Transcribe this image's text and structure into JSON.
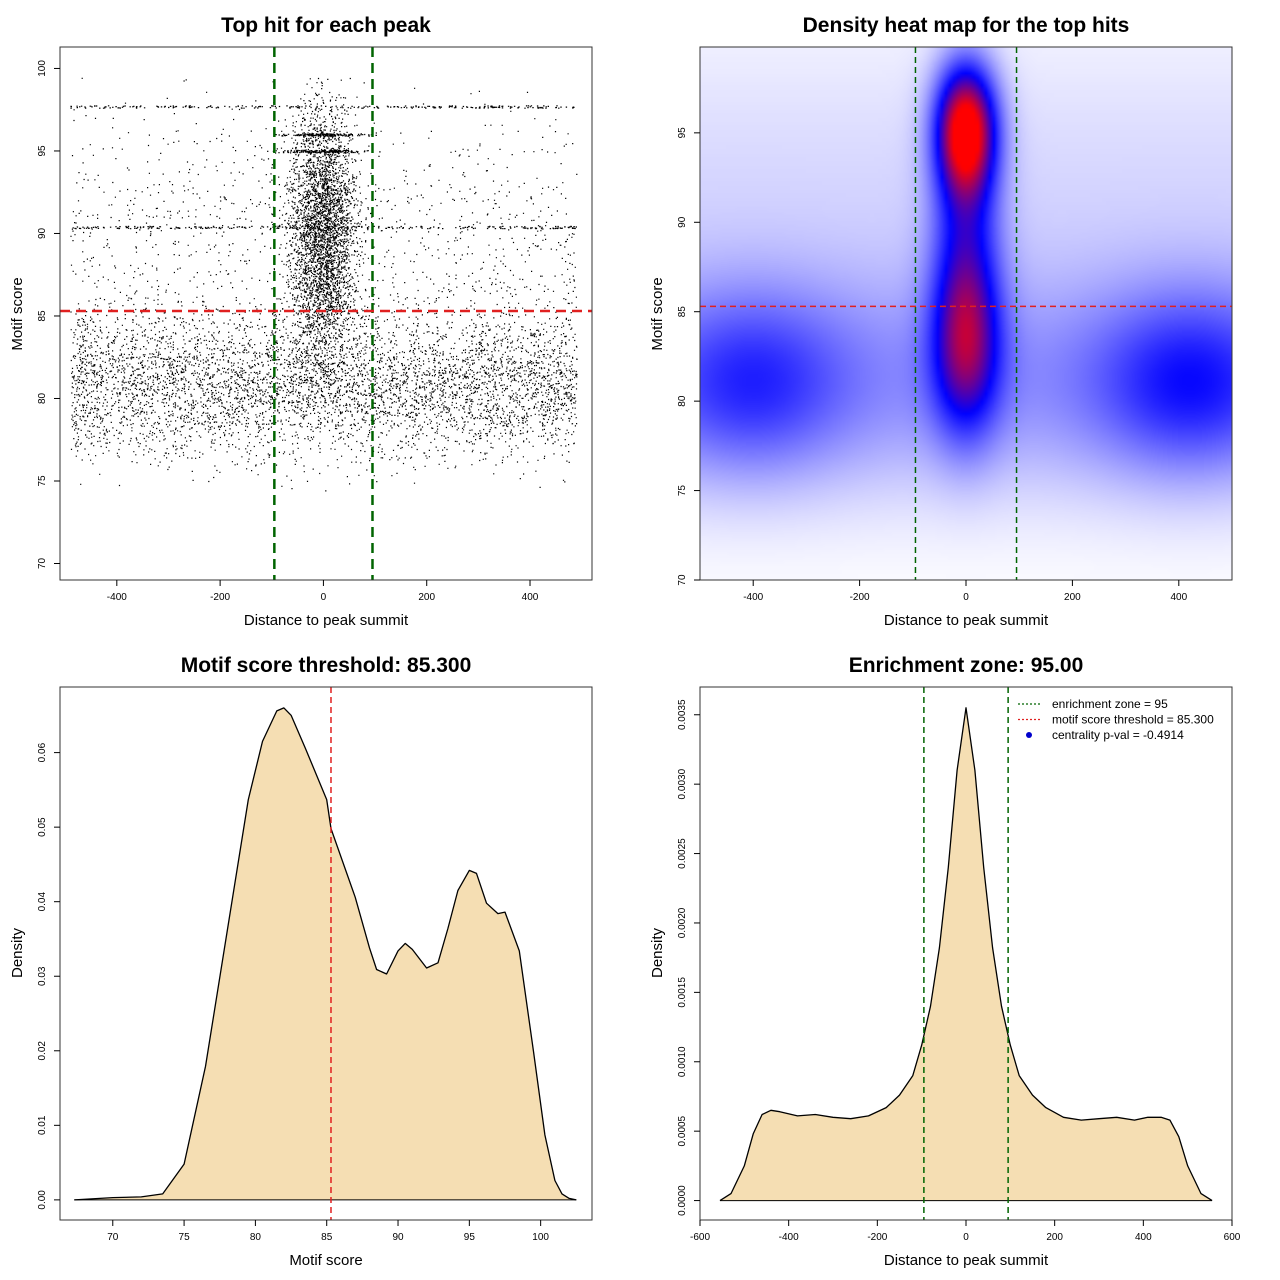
{
  "chart_data": [
    {
      "type": "scatter",
      "title": "Top hit for each peak",
      "xlabel": "Distance to peak summit",
      "ylabel": "Motif score",
      "xlim": [
        -510,
        520
      ],
      "ylim": [
        69,
        101.3
      ],
      "xticks": [
        "-400",
        "-200",
        "0",
        "200",
        "400"
      ],
      "yticks": [
        "70",
        "75",
        "80",
        "85",
        "90",
        "95",
        "100"
      ],
      "vlines": [
        -95,
        95
      ],
      "hline": 85.3,
      "line_colors": {
        "vline": "#006400",
        "hline": "#e02020"
      },
      "point_color": "#000000",
      "score_bands": [
        97.7,
        95.0,
        96.0,
        90.4
      ],
      "point_clusters": [
        {
          "x_center": 0,
          "x_spread": 45,
          "y_center": 90,
          "y_spread": 5.5,
          "n": 3500
        },
        {
          "x_center": 0,
          "x_spread": 480,
          "y_center": 81,
          "y_spread": 3.2,
          "n": 5200
        },
        {
          "x_center": 0,
          "x_spread": 480,
          "y_center": 90,
          "y_spread": 6,
          "n": 1100
        }
      ]
    },
    {
      "type": "heatmap",
      "title": "Density heat map for the top hits",
      "xlabel": "Distance to peak summit",
      "ylabel": "Motif score",
      "xlim": [
        -500,
        500
      ],
      "ylim": [
        70,
        99.8
      ],
      "xticks": [
        "-400",
        "-200",
        "0",
        "200",
        "400"
      ],
      "yticks": [
        "70",
        "75",
        "80",
        "85",
        "90",
        "95"
      ],
      "vlines": [
        -95,
        95
      ],
      "hline": 85.3,
      "colors": {
        "low": "#ffffff",
        "mid": "#0000ff",
        "high": "#ff0000"
      },
      "density_peaks": [
        {
          "x": 0,
          "y": 95.2,
          "weight": 1.0
        },
        {
          "x": 0,
          "y": 83,
          "weight": 0.55
        },
        {
          "x": 0,
          "y": 89,
          "weight": 0.35
        },
        {
          "x": -400,
          "y": 81,
          "weight": 0.25
        },
        {
          "x": 420,
          "y": 81,
          "weight": 0.3
        }
      ]
    },
    {
      "type": "area",
      "title": "Motif score threshold: 85.300",
      "xlabel": "Motif score",
      "ylabel": "Density",
      "xlim": [
        66.3,
        103.6
      ],
      "ylim": [
        -0.0027,
        0.0688
      ],
      "xticks": [
        "70",
        "75",
        "80",
        "85",
        "90",
        "95",
        "100"
      ],
      "yticks": [
        "0.00",
        "0.01",
        "0.02",
        "0.03",
        "0.04",
        "0.05",
        "0.06"
      ],
      "vline": 85.3,
      "fill_color": "#f5deb3",
      "x": [
        67.3,
        70,
        72,
        73.5,
        75,
        76.5,
        78,
        79.5,
        80.5,
        81.5,
        82,
        82.5,
        83.5,
        85,
        85.3,
        87,
        88,
        88.5,
        89.2,
        90,
        90.5,
        91,
        92,
        92.8,
        93.5,
        94.2,
        95,
        95.5,
        96.2,
        97,
        97.5,
        98.5,
        99.5,
        100.3,
        101,
        101.5,
        102,
        102.5
      ],
      "y": [
        0.0,
        0.0003,
        0.0004,
        0.0008,
        0.0048,
        0.0179,
        0.0358,
        0.0537,
        0.0615,
        0.0656,
        0.066,
        0.065,
        0.0606,
        0.0537,
        0.0498,
        0.0406,
        0.0338,
        0.0309,
        0.0303,
        0.0334,
        0.0344,
        0.0336,
        0.0311,
        0.0318,
        0.0364,
        0.0415,
        0.0442,
        0.0438,
        0.0398,
        0.0384,
        0.0386,
        0.0334,
        0.0199,
        0.0087,
        0.0026,
        0.0008,
        0.0002,
        0.0
      ]
    },
    {
      "type": "area",
      "title": "Enrichment zone: 95.00",
      "xlabel": "Distance to peak summit",
      "ylabel": "Density",
      "xlim": [
        -600,
        600
      ],
      "ylim": [
        -0.00014,
        0.0037
      ],
      "xticks": [
        "-600",
        "-400",
        "-200",
        "0",
        "200",
        "400",
        "600"
      ],
      "yticks": [
        "0.0000",
        "0.0005",
        "0.0010",
        "0.0015",
        "0.0020",
        "0.0025",
        "0.0030",
        "0.0035"
      ],
      "vlines": [
        -95,
        95
      ],
      "fill_color": "#f5deb3",
      "x": [
        -555,
        -530,
        -500,
        -480,
        -460,
        -440,
        -420,
        -380,
        -340,
        -300,
        -260,
        -220,
        -180,
        -150,
        -120,
        -100,
        -80,
        -60,
        -40,
        -20,
        0,
        20,
        40,
        60,
        80,
        100,
        120,
        150,
        180,
        220,
        260,
        300,
        340,
        380,
        410,
        440,
        460,
        480,
        500,
        530,
        555
      ],
      "y": [
        0.0,
        5e-05,
        0.00025,
        0.00048,
        0.00062,
        0.00065,
        0.00064,
        0.00061,
        0.00062,
        0.0006,
        0.00059,
        0.00061,
        0.00067,
        0.00076,
        0.0009,
        0.00112,
        0.0014,
        0.00182,
        0.0024,
        0.0031,
        0.00355,
        0.0031,
        0.0024,
        0.00182,
        0.0014,
        0.00112,
        0.0009,
        0.00076,
        0.00067,
        0.0006,
        0.00058,
        0.00059,
        0.0006,
        0.00058,
        0.0006,
        0.0006,
        0.00058,
        0.00046,
        0.00025,
        5e-05,
        0.0
      ],
      "legend": {
        "placement": "top-right",
        "entries": [
          {
            "label": "enrichment zone = 95",
            "color": "#006400",
            "style": "dotted-line"
          },
          {
            "label": "motif score threshold = 85.300",
            "color": "#e02020",
            "style": "dotted-line"
          },
          {
            "label": "centrality p-val = -0.4914",
            "color": "#0000cc",
            "style": "point"
          }
        ]
      }
    }
  ]
}
